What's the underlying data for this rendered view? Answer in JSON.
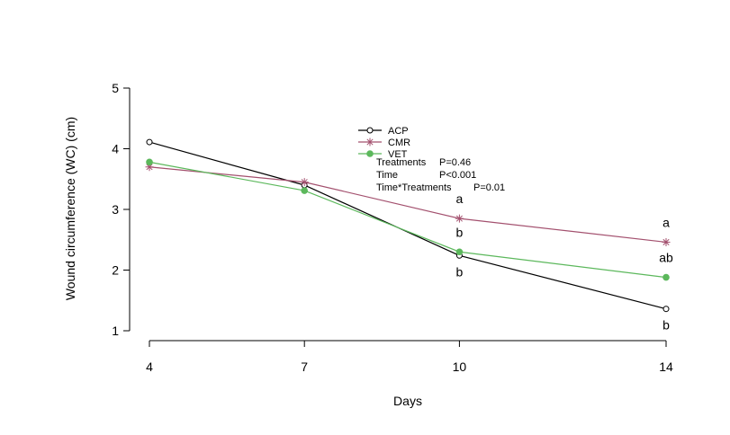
{
  "chart_data": {
    "type": "line",
    "title": "",
    "xlabel": "Days",
    "ylabel": "Wound circumference (WC) (cm)",
    "x": [
      4,
      7,
      10,
      14
    ],
    "x_tick_labels": [
      "4",
      "7",
      "10",
      "14"
    ],
    "ylim": [
      1,
      5
    ],
    "y_ticks": [
      1,
      2,
      3,
      4,
      5
    ],
    "y_tick_labels": [
      "1",
      "2",
      "3",
      "4",
      "5"
    ],
    "grid": false,
    "legend_position": "top-center",
    "series": [
      {
        "name": "ACP",
        "color": "#000000",
        "marker": "open-circle",
        "values": [
          4.11,
          3.4,
          2.24,
          1.36
        ]
      },
      {
        "name": "CMR",
        "color": "#a3506e",
        "marker": "asterisk",
        "values": [
          3.7,
          3.45,
          2.85,
          2.46
        ]
      },
      {
        "name": "VET",
        "color": "#5cb85c",
        "marker": "filled-circle",
        "values": [
          3.78,
          3.31,
          2.3,
          1.88
        ]
      }
    ],
    "annotations": {
      "significance_labels": [
        {
          "x": 10,
          "y": 2.85,
          "text": "a",
          "position": "above"
        },
        {
          "x": 10,
          "y": 2.3,
          "text": "b",
          "position": "above"
        },
        {
          "x": 10,
          "y": 2.24,
          "text": "b",
          "position": "below"
        },
        {
          "x": 14,
          "y": 2.46,
          "text": "a",
          "position": "above"
        },
        {
          "x": 14,
          "y": 1.88,
          "text": "ab",
          "position": "above"
        },
        {
          "x": 14,
          "y": 1.36,
          "text": "b",
          "position": "below"
        }
      ],
      "stats": [
        {
          "label": "Treatments",
          "value": "P=0.46"
        },
        {
          "label": "Time",
          "value": "P<0.001"
        },
        {
          "label": "Time*Treatments",
          "value": "P=0.01"
        }
      ]
    }
  }
}
